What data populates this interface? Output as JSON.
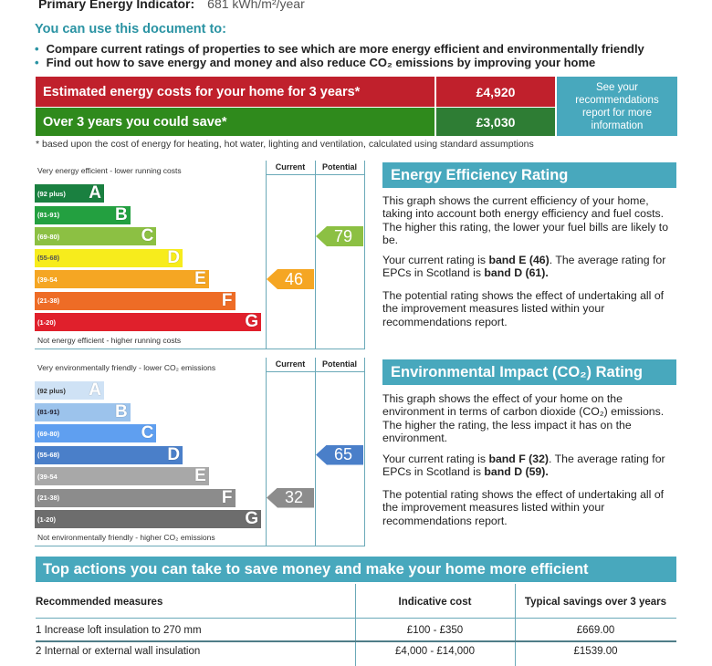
{
  "primary_energy": {
    "label": "Primary Energy Indicator:",
    "value": "681 kWh/m²/year"
  },
  "use": {
    "title": "You can use this document to:",
    "bullets": [
      "Compare current ratings of properties to see which are more energy efficient and environmentally friendly",
      "Find out how to save energy and money and also reduce CO₂ emissions by improving your home"
    ]
  },
  "costs": {
    "estimated_label": "Estimated energy costs for your home for 3 years*",
    "estimated_value": "£4,920",
    "save_label": "Over 3 years you could save*",
    "save_value": "£3,030",
    "see_more": "See your recommendations report for more information",
    "footnote": "* based upon the cost of energy for heating, hot water, lighting and ventilation, calculated using standard assumptions"
  },
  "colors": {
    "red": "#c0202c",
    "green": "#2f8a1c",
    "dark_green": "#2e7d34",
    "teal": "#48a8bd"
  },
  "ee_chart": {
    "top_caption": "Very energy efficient - lower running costs",
    "bottom_caption": "Not energy efficient - higher running costs",
    "current_header": "Current",
    "potential_header": "Potential",
    "current": 46,
    "current_color": "#f5a623",
    "potential": 79,
    "potential_color": "#8cc043",
    "bands": [
      {
        "range": "(92 plus)",
        "letter": "A",
        "color": "#1a8040"
      },
      {
        "range": "(81-91)",
        "letter": "B",
        "color": "#23a040"
      },
      {
        "range": "(69-80)",
        "letter": "C",
        "color": "#8cc043"
      },
      {
        "range": "(55-68)",
        "letter": "D",
        "color": "#f7ec1c"
      },
      {
        "range": "(39-54",
        "letter": "E",
        "color": "#f5a623"
      },
      {
        "range": "(21-38)",
        "letter": "F",
        "color": "#ee6c26"
      },
      {
        "range": "(1-20)",
        "letter": "G",
        "color": "#e0202c"
      }
    ]
  },
  "ee_text": {
    "heading": "Energy Efficiency Rating",
    "p1": "This graph shows the current efficiency of your home, taking into account both energy efficiency and fuel costs. The higher this rating, the lower your fuel bills are likely to be.",
    "p2a": "Your current rating is ",
    "p2b": "band E (46)",
    "p2c": ". The average rating for EPCs in Scotland is ",
    "p2d": "band D (61).",
    "p3": "The potential rating shows the effect of undertaking all of the improvement measures listed within your recommendations report."
  },
  "ei_chart": {
    "top_caption": "Very environmentally friendly - lower CO₂ emissions",
    "bottom_caption": "Not environmentally friendly - higher CO₂ emissions",
    "current_header": "Current",
    "potential_header": "Potential",
    "current": 32,
    "current_color": "#8c8c8c",
    "potential": 65,
    "potential_color": "#4a7fc9",
    "bands": [
      {
        "range": "(92 plus)",
        "letter": "A",
        "color": "#cfe2f5"
      },
      {
        "range": "(81-91)",
        "letter": "B",
        "color": "#9cc3ec"
      },
      {
        "range": "(69-80)",
        "letter": "C",
        "color": "#5f9ff0"
      },
      {
        "range": "(55-68)",
        "letter": "D",
        "color": "#4a7fc9"
      },
      {
        "range": "(39-54",
        "letter": "E",
        "color": "#a8a8a8"
      },
      {
        "range": "(21-38)",
        "letter": "F",
        "color": "#8c8c8c"
      },
      {
        "range": "(1-20)",
        "letter": "G",
        "color": "#6d6d6d"
      }
    ]
  },
  "ei_text": {
    "heading": "Environmental Impact (CO₂) Rating",
    "p1": "This graph shows the effect of your home on the environment in terms of carbon dioxide (CO₂) emissions. The higher the rating, the less impact it has on the environment.",
    "p2a": "Your current rating is ",
    "p2b": "band F (32)",
    "p2c": ". The average rating for EPCs in Scotland is ",
    "p2d": "band D (59).",
    "p3": "The potential rating shows the effect of undertaking all of the improvement measures listed within your recommendations report."
  },
  "actions": {
    "title": "Top actions you can take to save money and make your home more efficient",
    "headers": [
      "Recommended measures",
      "Indicative cost",
      "Typical savings over 3 years"
    ],
    "rows": [
      [
        "1 Increase loft insulation to 270 mm",
        "£100 - £350",
        "£669.00"
      ],
      [
        "2 Internal or external wall insulation",
        "£4,000 - £14,000",
        "£1539.00"
      ]
    ]
  }
}
